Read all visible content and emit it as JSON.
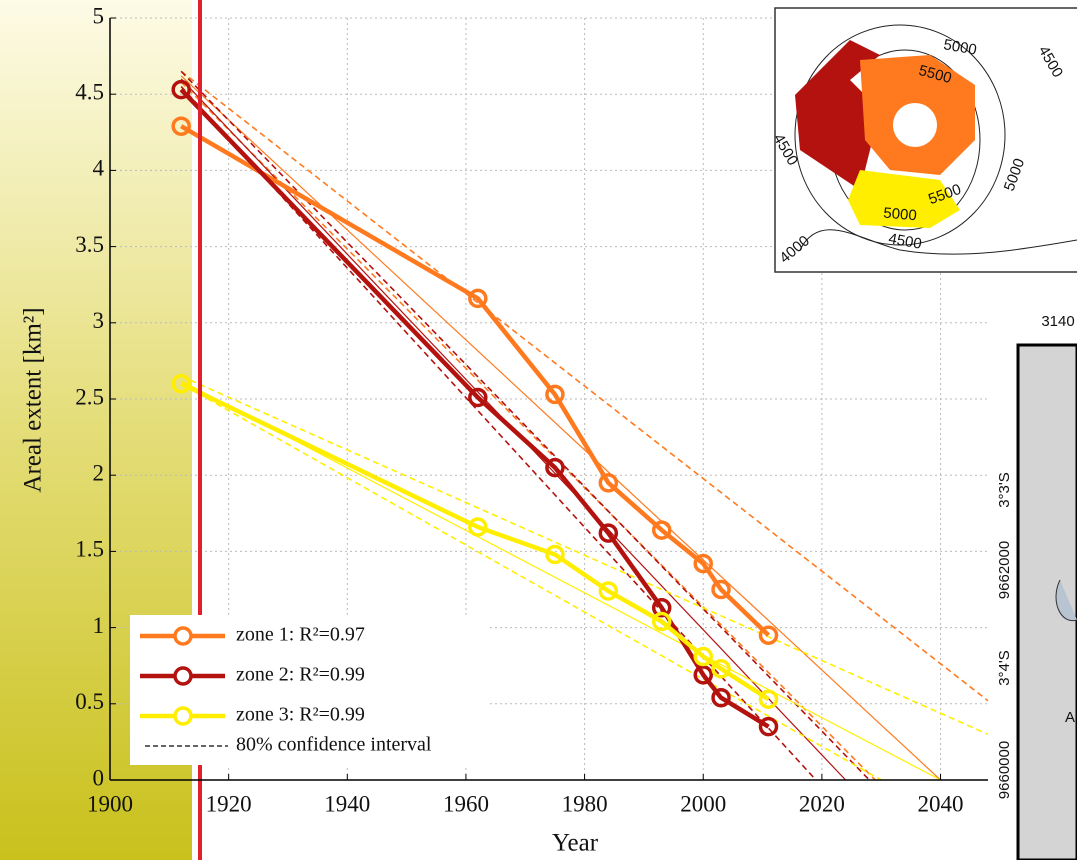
{
  "chart_data": {
    "type": "line",
    "x_label": "Year",
    "y_label": "Areal extent [km²]",
    "xlim": [
      1900,
      2048
    ],
    "ylim": [
      0,
      5
    ],
    "xticks": [
      1900,
      1920,
      1940,
      1960,
      1980,
      2000,
      2020,
      2040
    ],
    "yticks": [
      0,
      0.5,
      1,
      1.5,
      2,
      2.5,
      3,
      3.5,
      4,
      4.5,
      5
    ],
    "grid": true,
    "x": [
      1912,
      1962,
      1975,
      1984,
      1993,
      2000,
      2003,
      2011
    ],
    "series": [
      {
        "name": "zone 1: R²=0.97",
        "color": "#ff7a1f",
        "values": [
          4.29,
          3.16,
          2.53,
          1.95,
          1.64,
          1.42,
          1.25,
          0.95
        ],
        "fit": {
          "x": [
            1912,
            2040
          ],
          "y": [
            4.62,
            0
          ]
        },
        "ci": [
          {
            "x": [
              1912,
              2048
            ],
            "y": [
              4.65,
              0.52
            ]
          },
          {
            "x": [
              1912,
              2029
            ],
            "y": [
              4.58,
              0
            ]
          }
        ]
      },
      {
        "name": "zone 2: R²=0.99",
        "color": "#b3120f",
        "values": [
          4.53,
          2.51,
          2.05,
          1.62,
          1.13,
          0.69,
          0.54,
          0.35
        ],
        "fit": {
          "x": [
            1912,
            2024
          ],
          "y": [
            4.6,
            0
          ]
        },
        "ci": [
          {
            "x": [
              1912,
              2028
            ],
            "y": [
              4.65,
              0
            ]
          },
          {
            "x": [
              1912,
              2019
            ],
            "y": [
              4.55,
              0
            ]
          }
        ]
      },
      {
        "name": "zone 3: R²=0.99",
        "color": "#ffee00",
        "values": [
          2.6,
          1.66,
          1.48,
          1.24,
          1.04,
          0.81,
          0.73,
          0.53
        ],
        "fit": {
          "x": [
            1912,
            2040
          ],
          "y": [
            2.62,
            0
          ]
        },
        "ci": [
          {
            "x": [
              1912,
              2048
            ],
            "y": [
              2.65,
              0.3
            ]
          },
          {
            "x": [
              1912,
              2030
            ],
            "y": [
              2.6,
              0
            ]
          }
        ]
      }
    ],
    "ci_label": "80% confidence interval"
  },
  "map_inset": {
    "contour_labels": [
      "5000",
      "5500",
      "4500",
      "4500",
      "5000",
      "5500",
      "5000",
      "4500",
      "4000"
    ]
  },
  "map": {
    "labels": [
      "3140",
      "3°3'S",
      "9662000",
      "3°4'S",
      "9660000",
      "A"
    ]
  }
}
